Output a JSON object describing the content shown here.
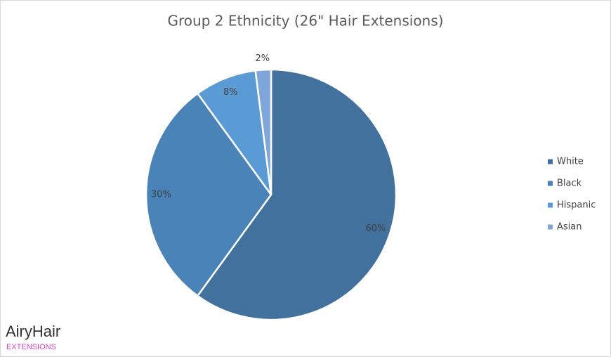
{
  "chart_data": {
    "type": "pie",
    "title": "Group 2 Ethnicity (26\" Hair Extensions)",
    "categories": [
      "White",
      "Black",
      "Hispanic",
      "Asian"
    ],
    "values": [
      60,
      30,
      8,
      2
    ],
    "value_labels": [
      "60%",
      "30%",
      "8%",
      "2%"
    ],
    "colors": [
      "#41719c",
      "#4a83b8",
      "#5b9bd5",
      "#7ea6da"
    ],
    "legend": "right"
  },
  "watermark": {
    "brand": "AiryHair",
    "tagline": "EXTENSIONS"
  }
}
